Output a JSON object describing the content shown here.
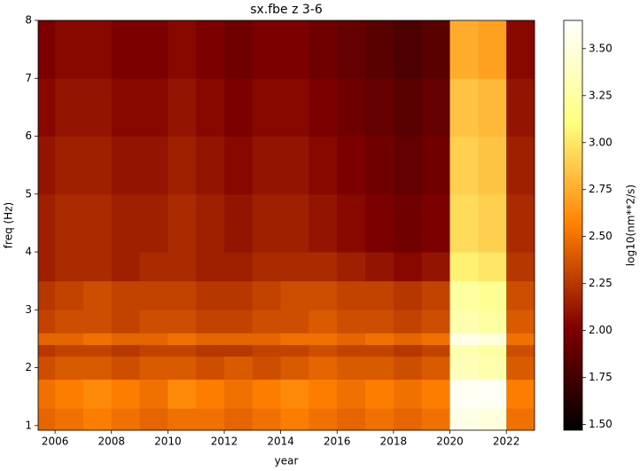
{
  "chart_data": {
    "type": "heatmap",
    "title": "sx.fbe z 3-6",
    "xlabel": "year",
    "ylabel": "freq (Hz)",
    "colorbar_label": "log10(nm**2/s)",
    "colormap": "afmhot",
    "x_bins": [
      2005.4,
      2006,
      2007,
      2008,
      2009,
      2010,
      2011,
      2012,
      2013,
      2014,
      2015,
      2016,
      2017,
      2018,
      2019,
      2020,
      2021,
      2022,
      2023
    ],
    "y_bins": [
      0.92,
      1.3,
      1.8,
      2.2,
      2.4,
      2.6,
      3,
      3.5,
      4,
      5,
      6,
      7,
      8
    ],
    "values": [
      [
        2.45,
        2.5,
        2.55,
        2.5,
        2.45,
        2.5,
        2.5,
        2.45,
        2.5,
        2.55,
        2.5,
        2.45,
        2.5,
        2.45,
        2.5,
        3.55,
        3.5,
        2.5
      ],
      [
        2.5,
        2.55,
        2.6,
        2.55,
        2.5,
        2.6,
        2.55,
        2.5,
        2.55,
        2.6,
        2.55,
        2.5,
        2.55,
        2.5,
        2.55,
        3.6,
        3.6,
        2.55
      ],
      [
        2.35,
        2.4,
        2.4,
        2.35,
        2.4,
        2.4,
        2.35,
        2.4,
        2.35,
        2.4,
        2.45,
        2.4,
        2.4,
        2.35,
        2.4,
        3.35,
        3.3,
        2.4
      ],
      [
        2.25,
        2.3,
        2.3,
        2.25,
        2.3,
        2.3,
        2.25,
        2.25,
        2.3,
        2.3,
        2.35,
        2.3,
        2.3,
        2.25,
        2.3,
        3.3,
        3.25,
        2.35
      ],
      [
        2.45,
        2.45,
        2.5,
        2.45,
        2.45,
        2.5,
        2.45,
        2.45,
        2.45,
        2.5,
        2.5,
        2.45,
        2.5,
        2.45,
        2.5,
        3.55,
        3.5,
        2.5
      ],
      [
        2.3,
        2.35,
        2.35,
        2.3,
        2.35,
        2.35,
        2.3,
        2.3,
        2.35,
        2.35,
        2.4,
        2.35,
        2.35,
        2.3,
        2.35,
        3.3,
        3.25,
        2.4
      ],
      [
        2.25,
        2.3,
        2.35,
        2.3,
        2.3,
        2.3,
        2.25,
        2.25,
        2.3,
        2.35,
        2.35,
        2.3,
        2.3,
        2.25,
        2.3,
        3.25,
        3.2,
        2.35
      ],
      [
        2.15,
        2.2,
        2.2,
        2.15,
        2.2,
        2.2,
        2.15,
        2.15,
        2.2,
        2.2,
        2.2,
        2.15,
        2.1,
        2.05,
        2.1,
        3.05,
        3.0,
        2.25
      ],
      [
        2.15,
        2.2,
        2.2,
        2.15,
        2.15,
        2.2,
        2.15,
        2.1,
        2.15,
        2.15,
        2.1,
        2.05,
        2.0,
        1.95,
        2.0,
        2.95,
        2.9,
        2.2
      ],
      [
        2.1,
        2.15,
        2.15,
        2.1,
        2.1,
        2.15,
        2.1,
        2.05,
        2.1,
        2.1,
        2.05,
        2.0,
        1.95,
        1.9,
        1.95,
        2.9,
        2.85,
        2.15
      ],
      [
        2.05,
        2.1,
        2.1,
        2.05,
        2.05,
        2.1,
        2.05,
        2.0,
        2.05,
        2.05,
        2.0,
        1.95,
        1.9,
        1.85,
        1.9,
        2.85,
        2.8,
        2.1
      ],
      [
        2.0,
        2.05,
        2.05,
        2.0,
        2.0,
        2.05,
        2.0,
        1.95,
        2.0,
        2.0,
        1.95,
        1.9,
        1.85,
        1.8,
        1.85,
        2.75,
        2.7,
        2.05
      ]
    ],
    "xlim": [
      2005.4,
      2023
    ],
    "ylim": [
      0.92,
      8
    ],
    "clim": [
      1.47,
      3.65
    ],
    "xticks": [
      2006,
      2008,
      2010,
      2012,
      2014,
      2016,
      2018,
      2020,
      2022
    ],
    "yticks": [
      1,
      2,
      3,
      4,
      5,
      6,
      7,
      8
    ],
    "cticks": [
      {
        "value": 1.5,
        "label": "1.50"
      },
      {
        "value": 1.75,
        "label": "1.75"
      },
      {
        "value": 2,
        "label": "2.00"
      },
      {
        "value": 2.25,
        "label": "2.25"
      },
      {
        "value": 2.5,
        "label": "2.50"
      },
      {
        "value": 2.75,
        "label": "2.75"
      },
      {
        "value": 3,
        "label": "3.00"
      },
      {
        "value": 3.25,
        "label": "3.25"
      },
      {
        "value": 3.5,
        "label": "3.50"
      }
    ]
  }
}
